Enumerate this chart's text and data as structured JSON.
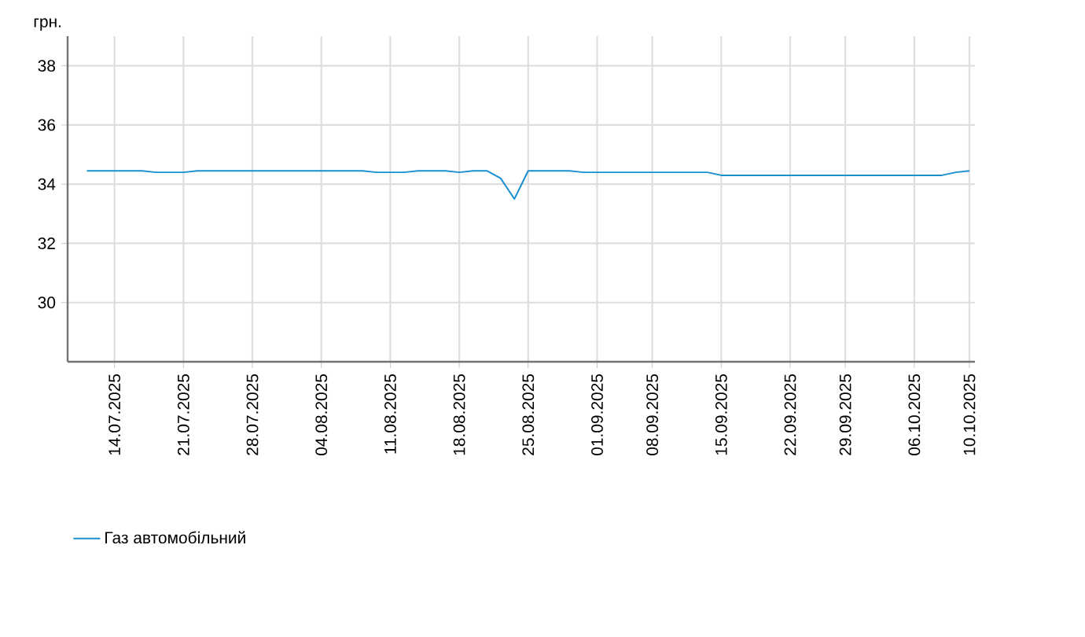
{
  "chart_data": {
    "type": "line",
    "ylabel": "грн.",
    "categories": [
      null,
      null,
      "14.07.2025",
      null,
      null,
      null,
      null,
      "21.07.2025",
      null,
      null,
      null,
      null,
      "28.07.2025",
      null,
      null,
      null,
      null,
      "04.08.2025",
      null,
      null,
      null,
      null,
      "11.08.2025",
      null,
      null,
      null,
      null,
      "18.08.2025",
      null,
      null,
      null,
      null,
      "25.08.2025",
      null,
      null,
      null,
      null,
      "01.09.2025",
      null,
      null,
      null,
      "08.09.2025",
      null,
      null,
      null,
      null,
      "15.09.2025",
      null,
      null,
      null,
      null,
      "22.09.2025",
      null,
      null,
      null,
      "29.09.2025",
      null,
      null,
      null,
      null,
      "06.10.2025",
      null,
      null,
      null,
      "10.10.2025"
    ],
    "series": [
      {
        "name": "Газ автомобільний",
        "color": "#1a8fd0",
        "values": [
          34.45,
          34.45,
          34.45,
          34.45,
          34.45,
          34.4,
          34.4,
          34.4,
          34.45,
          34.45,
          34.45,
          34.45,
          34.45,
          34.45,
          34.45,
          34.45,
          34.45,
          34.45,
          34.45,
          34.45,
          34.45,
          34.4,
          34.4,
          34.4,
          34.45,
          34.45,
          34.45,
          34.4,
          34.45,
          34.45,
          34.2,
          33.5,
          34.45,
          34.45,
          34.45,
          34.45,
          34.4,
          34.4,
          34.4,
          34.4,
          34.4,
          34.4,
          34.4,
          34.4,
          34.4,
          34.4,
          34.3,
          34.3,
          34.3,
          34.3,
          34.3,
          34.3,
          34.3,
          34.3,
          34.3,
          34.3,
          34.3,
          34.3,
          34.3,
          34.3,
          34.3,
          34.3,
          34.3,
          34.4,
          34.45
        ]
      }
    ],
    "ylim": [
      28,
      39
    ],
    "yticks": [
      30,
      32,
      34,
      36,
      38
    ],
    "grid": true,
    "legend": "bottom left",
    "marker": "none",
    "line_style": "solid"
  }
}
